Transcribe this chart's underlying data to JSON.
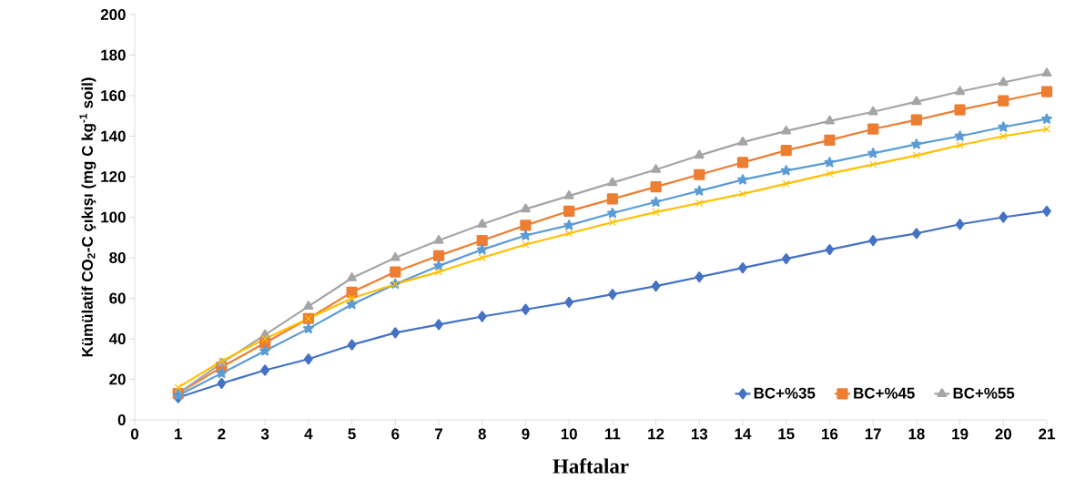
{
  "chart_data": {
    "type": "line",
    "xlabel": "Haftalar",
    "ylabel": "Kümülatif CO$_{2}$-C çıkışı (mg C kg$^{-1}$ soil)",
    "x": [
      1,
      2,
      3,
      4,
      5,
      6,
      7,
      8,
      9,
      10,
      11,
      12,
      13,
      14,
      15,
      16,
      17,
      18,
      19,
      20,
      21
    ],
    "xlim": [
      0,
      21
    ],
    "xticks": [
      0,
      1,
      2,
      3,
      4,
      5,
      6,
      7,
      8,
      9,
      10,
      11,
      12,
      13,
      14,
      15,
      16,
      17,
      18,
      19,
      20,
      21
    ],
    "ylim": [
      0,
      200
    ],
    "yticks": [
      0,
      20,
      40,
      60,
      80,
      100,
      120,
      140,
      160,
      180,
      200
    ],
    "grid": false,
    "legend": "bottom right",
    "line_style": "solid",
    "series": [
      {
        "name": "BC+%35",
        "color": "#4472c4",
        "marker": "diamond",
        "values": [
          11,
          18,
          24.5,
          30,
          37,
          43,
          47,
          51,
          54.5,
          58,
          62,
          66,
          70.5,
          75,
          79.5,
          84,
          88.5,
          92,
          96.5,
          100,
          103
        ]
      },
      {
        "name": "BC+%45",
        "color": "#ed7d31",
        "marker": "square",
        "values": [
          13,
          26,
          38,
          50,
          63,
          73,
          81,
          88.5,
          96,
          103,
          109,
          115,
          121,
          127,
          133,
          138,
          143.5,
          148,
          153,
          157.5,
          162
        ]
      },
      {
        "name": "BC+%55",
        "color": "#a5a5a5",
        "marker": "triangle",
        "values": [
          13,
          28,
          42,
          56,
          70,
          80,
          88.5,
          96.5,
          104,
          110.5,
          117,
          123.5,
          130.5,
          137,
          142.5,
          147.5,
          152,
          157,
          162,
          166.5,
          171
        ]
      },
      {
        "color": "#5b9bd5",
        "marker": "star",
        "values": [
          12,
          23,
          34,
          45,
          57,
          67,
          76,
          84,
          91,
          96,
          102,
          107.5,
          113,
          118.5,
          123,
          127,
          131.5,
          136,
          140,
          144.5,
          148.5
        ]
      },
      {
        "color": "#ffc000",
        "marker": "cross",
        "values": [
          16,
          29,
          40,
          50,
          60,
          67,
          73,
          80,
          86.5,
          92,
          97.5,
          102.5,
          107,
          111.5,
          116.5,
          121.5,
          126,
          130.5,
          135.5,
          140,
          143.5
        ]
      }
    ]
  }
}
